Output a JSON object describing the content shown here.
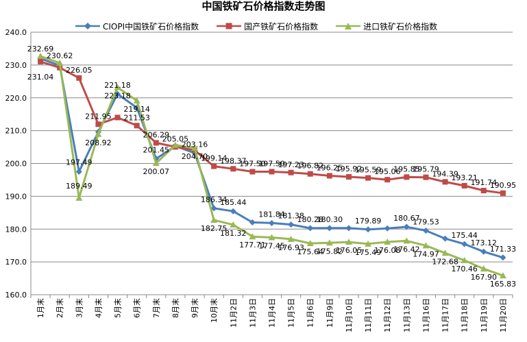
{
  "chart_data": {
    "type": "line",
    "title": "中国铁矿石价格指数走势图",
    "categories": [
      "1月末",
      "2月末",
      "3月末",
      "4月末",
      "5月末",
      "6月末",
      "7月末",
      "8月末",
      "9月末",
      "10月末",
      "11月2日",
      "11月3日",
      "11月4日",
      "11月5日",
      "11月6日",
      "11月9日",
      "11月10日",
      "11月11日",
      "11月12日",
      "11月13日",
      "11月16日",
      "11月17日",
      "11月18日",
      "11月19日",
      "11月20日"
    ],
    "ylim": [
      160,
      240
    ],
    "yticks": [
      "160.0",
      "170.0",
      "180.0",
      "190.0",
      "200.0",
      "210.0",
      "220.0",
      "230.0",
      "240.0"
    ],
    "grid": true,
    "legend_position": "top",
    "series": [
      {
        "name": "CIOPI中国铁矿石价格指数",
        "color": "#4a7ebb",
        "marker": "diamond",
        "values": [
          232.0,
          229.8,
          197.49,
          209.6,
          221.18,
          217.0,
          201.45,
          205.3,
          203.16,
          186.34,
          185.44,
          182.04,
          181.84,
          181.38,
          180.28,
          180.3,
          180.3,
          179.89,
          180.2,
          180.67,
          179.53,
          177.1,
          175.44,
          173.12,
          171.33
        ],
        "labels": [
          "",
          "",
          "197.49",
          "",
          "221.18",
          "",
          "201.45",
          "",
          "203.16",
          "186.34",
          "185.44",
          "",
          "181.84",
          "181.38",
          "180.28",
          "180.30",
          "",
          "179.89",
          "",
          "180.67",
          "179.53",
          "",
          "175.44",
          "173.12",
          "171.33"
        ]
      },
      {
        "name": "国产铁矿石价格指数",
        "color": "#be4b48",
        "marker": "square",
        "values": [
          231.04,
          229.2,
          226.05,
          211.95,
          214.0,
          211.53,
          206.29,
          205.05,
          204.0,
          199.14,
          198.37,
          197.5,
          197.5,
          197.23,
          196.82,
          196.25,
          195.92,
          195.59,
          195.06,
          195.85,
          195.79,
          194.39,
          193.21,
          191.74,
          190.95
        ],
        "labels": [
          "231.04",
          "",
          "226.05",
          "211.95",
          "",
          "211.53",
          "206.29",
          "205.05",
          "",
          "199.14",
          "198.37",
          "197.50",
          "197.50",
          "197.23",
          "196.82",
          "196.25",
          "195.92",
          "195.59",
          "195.06",
          "195.85",
          "195.79",
          "194.39",
          "193.21",
          "191.74",
          "190.95"
        ]
      },
      {
        "name": "进口铁矿石价格指数",
        "color": "#98b954",
        "marker": "triangle",
        "values": [
          232.69,
          230.62,
          189.49,
          208.92,
          223.18,
          219.14,
          200.07,
          205.6,
          204.7,
          182.75,
          181.32,
          177.71,
          177.45,
          176.93,
          175.64,
          175.82,
          176.05,
          175.49,
          176.08,
          176.42,
          174.97,
          172.68,
          170.46,
          167.9,
          165.83
        ],
        "labels": [
          "232.69",
          "230.62",
          "189.49",
          "208.92",
          "223.18",
          "219.14",
          "200.07",
          "",
          "204.70",
          "182.75",
          "181.32",
          "177.71",
          "177.45",
          "176.93",
          "175.64",
          "175.82",
          "176.05",
          "175.49",
          "176.08",
          "176.42",
          "174.97",
          "172.68",
          "170.46",
          "167.90",
          "165.83"
        ]
      }
    ]
  }
}
